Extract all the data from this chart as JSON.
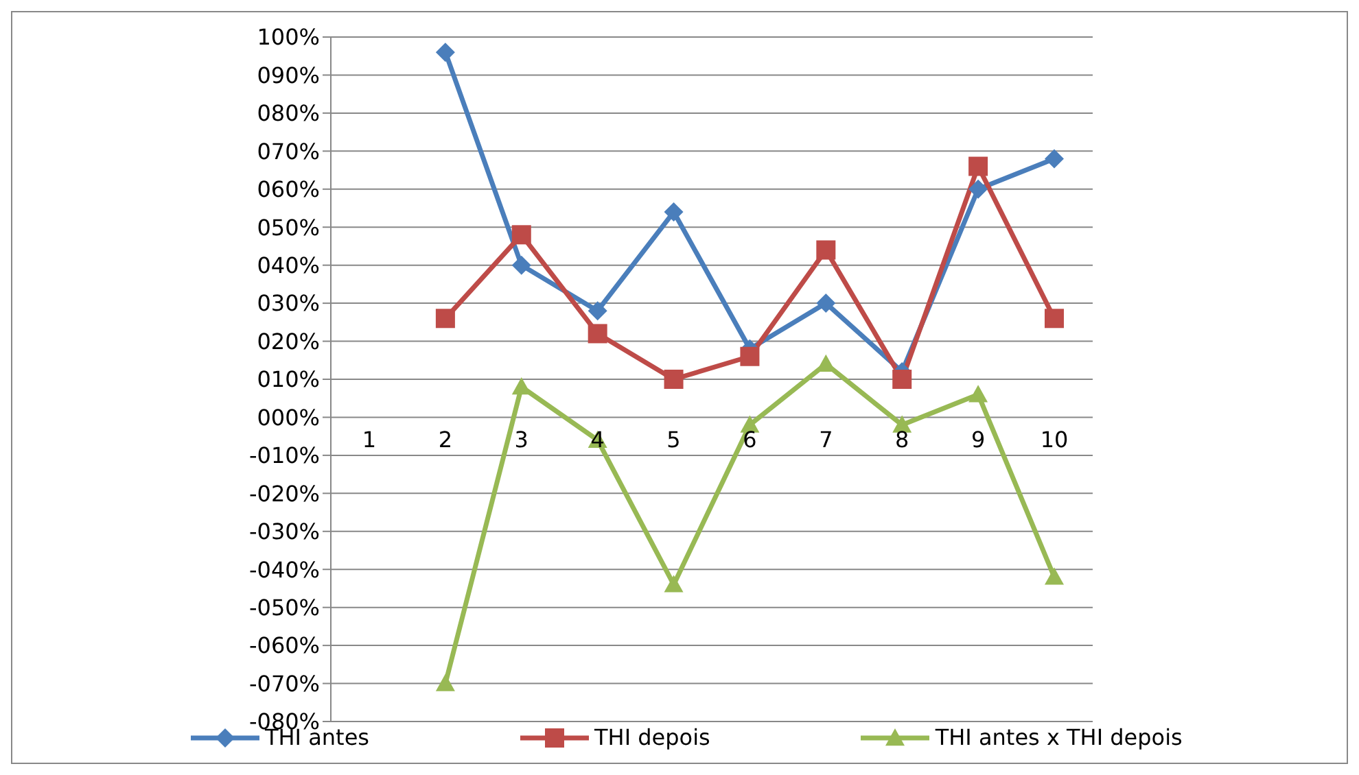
{
  "chart_data": {
    "type": "line",
    "categories": [
      "1",
      "2",
      "3",
      "4",
      "5",
      "6",
      "7",
      "8",
      "9",
      "10"
    ],
    "series": [
      {
        "name": "THI antes",
        "color": "#4a7ebb",
        "marker": "diamond",
        "values": [
          null,
          96,
          40,
          28,
          54,
          18,
          30,
          12,
          60,
          68
        ]
      },
      {
        "name": "THI depois",
        "color": "#be4b48",
        "marker": "square",
        "values": [
          null,
          26,
          48,
          22,
          10,
          16,
          44,
          10,
          66,
          26
        ]
      },
      {
        "name": "THI antes x THI depois",
        "color": "#98b954",
        "marker": "triangle",
        "values": [
          null,
          -70,
          8,
          -6,
          -44,
          -2,
          14,
          -2,
          6,
          -42
        ]
      }
    ],
    "ylim": [
      -80,
      100
    ],
    "yticks": [
      {
        "value": -80,
        "label": "-080%"
      },
      {
        "value": -70,
        "label": "-070%"
      },
      {
        "value": -60,
        "label": "-060%"
      },
      {
        "value": -50,
        "label": "-050%"
      },
      {
        "value": -40,
        "label": "-040%"
      },
      {
        "value": -30,
        "label": "-030%"
      },
      {
        "value": -20,
        "label": "-020%"
      },
      {
        "value": -10,
        "label": "-010%"
      },
      {
        "value": 0,
        "label": "000%"
      },
      {
        "value": 10,
        "label": "010%"
      },
      {
        "value": 20,
        "label": "020%"
      },
      {
        "value": 30,
        "label": "030%"
      },
      {
        "value": 40,
        "label": "040%"
      },
      {
        "value": 50,
        "label": "050%"
      },
      {
        "value": 60,
        "label": "060%"
      },
      {
        "value": 70,
        "label": "070%"
      },
      {
        "value": 80,
        "label": "080%"
      },
      {
        "value": 90,
        "label": "090%"
      },
      {
        "value": 100,
        "label": "100%"
      }
    ],
    "grid": "y",
    "legend": "bottom"
  }
}
